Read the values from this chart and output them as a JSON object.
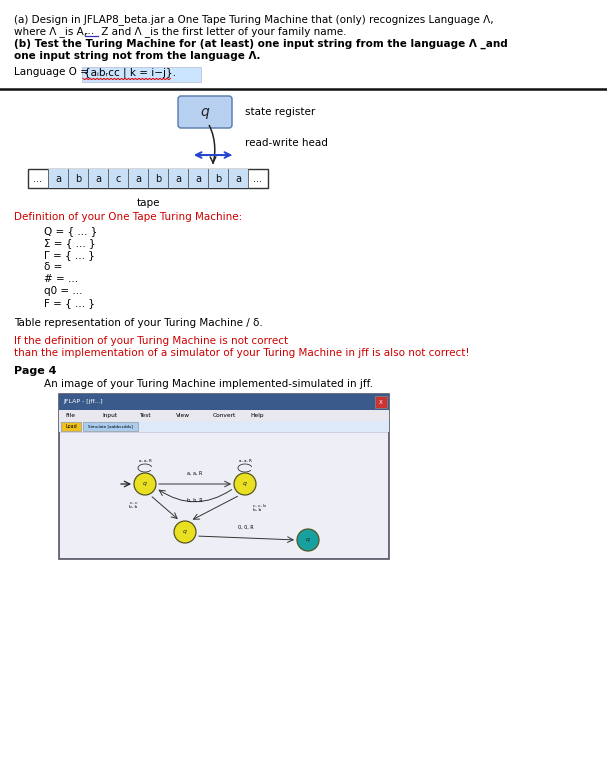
{
  "bg_color": "#ffffff",
  "red_color": "#cc0000",
  "highlight_bg": "#cce5ff",
  "tape_cell_bg": "#c8dff5",
  "box_bg": "#b8d0f0",
  "separator_color": "#111111",
  "line1": "(a) Design in JFLAP8_beta.jar a One Tape Turing Machine that (only) recognizes Language Λ,",
  "line2a": "where Λ _is A,",
  "line2b": "...",
  "line2c": " Z and Λ _is the first letter of your family name.",
  "line3": "(b) Test the Turing Machine for (at least) one input string from the language Λ _and",
  "line4": "one input string not from the language Λ.",
  "lang_label": "Language O = ",
  "lang_formula": "{aᵢbᵣcᴄ | k = i−j}.",
  "state_reg_label": "state register",
  "rw_label": "read-write head",
  "tape_label": "tape",
  "tape_cells": [
    "...",
    "a",
    "b",
    "a",
    "c",
    "a",
    "b",
    "a",
    "a",
    "b",
    "a",
    "..."
  ],
  "def_title": "Definition of your One Tape Turing Machine:",
  "def_lines": [
    "Q = { ... }",
    "Σ = { ... }",
    "Γ = { ... }",
    "δ =",
    "# = ...",
    "q0 = ...",
    "F = { ... }"
  ],
  "table_text": "Table representation of your Turing Machine / δ.",
  "warn1": "If the definition of your Turing Machine is not correct",
  "warn2": "than the implementation of a simulator of your Turing Machine in jff is also not correct!",
  "page_label": "Page 4",
  "page_text": "An image of your Turing Machine implemented-simulated in jff.",
  "jff_title": "JFLAP - [jff...]",
  "jff_menu": [
    "File",
    "Input",
    "Test",
    "View",
    "Convert",
    "Help"
  ],
  "jff_tab1": "Load",
  "jff_tab2": "Simulate [aabbccdds]",
  "fs_main": 7.5,
  "fs_bold": 7.5,
  "fs_small": 6.5
}
